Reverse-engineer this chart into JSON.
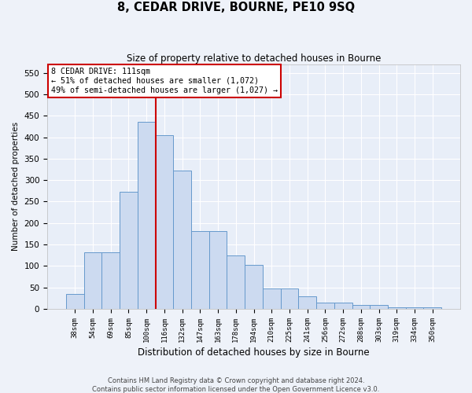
{
  "title": "8, CEDAR DRIVE, BOURNE, PE10 9SQ",
  "subtitle": "Size of property relative to detached houses in Bourne",
  "xlabel": "Distribution of detached houses by size in Bourne",
  "ylabel": "Number of detached properties",
  "categories": [
    "38sqm",
    "54sqm",
    "69sqm",
    "85sqm",
    "100sqm",
    "116sqm",
    "132sqm",
    "147sqm",
    "163sqm",
    "178sqm",
    "194sqm",
    "210sqm",
    "225sqm",
    "241sqm",
    "256sqm",
    "272sqm",
    "288sqm",
    "303sqm",
    "319sqm",
    "334sqm",
    "350sqm"
  ],
  "values": [
    35,
    132,
    132,
    272,
    435,
    405,
    322,
    182,
    182,
    125,
    103,
    47,
    47,
    29,
    14,
    14,
    10,
    10,
    4,
    4,
    4
  ],
  "bar_color": "#ccdaf0",
  "bar_edge_color": "#6699cc",
  "property_line_color": "#cc0000",
  "annotation_line1": "8 CEDAR DRIVE: 111sqm",
  "annotation_line2": "← 51% of detached houses are smaller (1,072)",
  "annotation_line3": "49% of semi-detached houses are larger (1,027) →",
  "annotation_box_facecolor": "#ffffff",
  "annotation_box_edgecolor": "#cc0000",
  "ylim_max": 570,
  "yticks": [
    0,
    50,
    100,
    150,
    200,
    250,
    300,
    350,
    400,
    450,
    500,
    550
  ],
  "footer1": "Contains HM Land Registry data © Crown copyright and database right 2024.",
  "footer2": "Contains public sector information licensed under the Open Government Licence v3.0.",
  "fig_bg_color": "#eef2f9",
  "plot_bg_color": "#e8eef8",
  "grid_color": "#ffffff"
}
